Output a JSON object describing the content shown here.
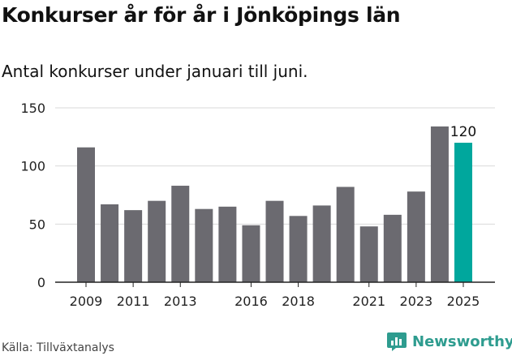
{
  "title": "Konkurser år för år i Jönköpings län",
  "subtitle": "Antal konkurser under januari till juni.",
  "source": "Källa: Tillväxtanalys",
  "logo": {
    "text": "Newsworthy",
    "icon": "bar-chart-bubble-icon"
  },
  "colors": {
    "bar": "#6b6a70",
    "highlight": "#00a79d",
    "grid": "#d9d9d9",
    "axis": "#222222",
    "brand": "#2e9c8f"
  },
  "chart_data": {
    "type": "bar",
    "title": "",
    "xlabel": "",
    "ylabel": "",
    "x": [
      2009,
      2010,
      2011,
      2012,
      2013,
      2014,
      2015,
      2016,
      2017,
      2018,
      2019,
      2020,
      2021,
      2022,
      2023,
      2024,
      2025
    ],
    "values": [
      116,
      67,
      62,
      70,
      83,
      63,
      65,
      49,
      70,
      57,
      66,
      82,
      48,
      58,
      78,
      134,
      120
    ],
    "ylim": [
      0,
      150
    ],
    "yticks": [
      "0",
      "50",
      "100",
      "150"
    ],
    "xticklabels": [
      "2009",
      "",
      "2011",
      "",
      "2013",
      "",
      "",
      "2016",
      "",
      "2018",
      "",
      "",
      "2021",
      "",
      "2023",
      "",
      "2025"
    ],
    "highlight_index": 16,
    "annotation": "120",
    "grid": true,
    "legend": "none"
  }
}
